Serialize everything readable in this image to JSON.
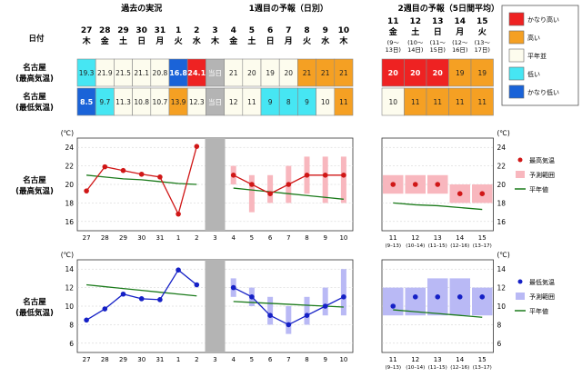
{
  "header": {
    "date_label": "日付",
    "sections": [
      "過去の実況",
      "1週目の予報（日別）",
      "2週目の予報（5日間平均）"
    ],
    "days": [
      {
        "num": "27",
        "dow": "木"
      },
      {
        "num": "28",
        "dow": "金"
      },
      {
        "num": "29",
        "dow": "土"
      },
      {
        "num": "30",
        "dow": "日"
      },
      {
        "num": "31",
        "dow": "月"
      },
      {
        "num": "1",
        "dow": "火"
      },
      {
        "num": "2",
        "dow": "水"
      },
      {
        "num": "3",
        "dow": "木"
      },
      {
        "num": "4",
        "dow": "金"
      },
      {
        "num": "5",
        "dow": "土"
      },
      {
        "num": "6",
        "dow": "日"
      },
      {
        "num": "7",
        "dow": "月"
      },
      {
        "num": "8",
        "dow": "火"
      },
      {
        "num": "9",
        "dow": "水"
      },
      {
        "num": "10",
        "dow": "木"
      }
    ],
    "week2": [
      {
        "num": "11",
        "dow": "金",
        "sub": "(9～",
        "sub2": "13日)"
      },
      {
        "num": "12",
        "dow": "土",
        "sub": "(10～",
        "sub2": "14日)"
      },
      {
        "num": "13",
        "dow": "日",
        "sub": "(11～",
        "sub2": "15日)"
      },
      {
        "num": "14",
        "dow": "月",
        "sub": "(12～",
        "sub2": "16日)"
      },
      {
        "num": "15",
        "dow": "火",
        "sub": "(13～",
        "sub2": "17日)"
      }
    ]
  },
  "table": {
    "rows": [
      {
        "label1": "名古屋",
        "label2": "(最高気温)",
        "cells": [
          "19.3",
          "21.9",
          "21.5",
          "21.1",
          "20.8",
          "16.8",
          "24.1",
          "当日",
          "21",
          "20",
          "19",
          "20",
          "21",
          "21",
          "21"
        ],
        "classes": [
          "low",
          "normal",
          "normal",
          "normal",
          "normal",
          "very-low",
          "very-high",
          "today",
          "normal",
          "normal",
          "normal",
          "normal",
          "high",
          "high",
          "high"
        ],
        "week2": [
          "20",
          "20",
          "20",
          "19",
          "19"
        ],
        "week2_classes": [
          "very-high",
          "very-high",
          "very-high",
          "high",
          "high"
        ]
      },
      {
        "label1": "名古屋",
        "label2": "(最低気温)",
        "cells": [
          "8.5",
          "9.7",
          "11.3",
          "10.8",
          "10.7",
          "13.9",
          "12.3",
          "当日",
          "12",
          "11",
          "9",
          "8",
          "9",
          "10",
          "11"
        ],
        "classes": [
          "very-low",
          "low",
          "normal",
          "normal",
          "normal",
          "high",
          "normal",
          "today",
          "normal",
          "normal",
          "low",
          "low",
          "low",
          "normal",
          "high"
        ],
        "week2": [
          "10",
          "11",
          "11",
          "11",
          "11"
        ],
        "week2_classes": [
          "normal",
          "high",
          "high",
          "high",
          "high"
        ]
      }
    ]
  },
  "legend_categories": [
    {
      "label": "かなり高い",
      "color": "#ee2222"
    },
    {
      "label": "高い",
      "color": "#f5a023"
    },
    {
      "label": "平年並",
      "color": "#fdfcee"
    },
    {
      "label": "低い",
      "color": "#46e6f3"
    },
    {
      "label": "かなり低い",
      "color": "#1a63d8"
    }
  ],
  "colors": {
    "very-high": "#ee2222",
    "high": "#f5a023",
    "normal": "#fdfcee",
    "low": "#46e6f3",
    "very-low": "#1a63d8",
    "today": "#b4b4b4",
    "red_line": "#d01717",
    "red_band": "#f8b7be",
    "blue_line": "#1520c6",
    "blue_band": "#b9b9f5",
    "normal_line": "#1a7a1a"
  },
  "chart_data": [
    {
      "type": "line",
      "row_label1": "名古屋",
      "row_label2": "(最高気温)",
      "y_unit": "(℃)",
      "ylim": [
        15,
        25
      ],
      "yticks": [
        16,
        18,
        20,
        22,
        24
      ],
      "x_past": [
        "27",
        "28",
        "29",
        "30",
        "31",
        "1",
        "2"
      ],
      "x_today": "3",
      "x_week1": [
        "4",
        "5",
        "6",
        "7",
        "8",
        "9",
        "10"
      ],
      "x_week2": [
        "11",
        "12",
        "13",
        "14",
        "15"
      ],
      "x_week2_sub": [
        "(9–13)",
        "(10–14)",
        "(11–15)",
        "(12–16)",
        "(13–17)"
      ],
      "past_values": [
        19.3,
        21.9,
        21.5,
        21.1,
        20.8,
        16.8,
        24.1
      ],
      "week1_values": [
        21,
        20,
        19,
        20,
        21,
        21,
        21
      ],
      "week1_range": [
        [
          20,
          22
        ],
        [
          17,
          21
        ],
        [
          18,
          21
        ],
        [
          18,
          22
        ],
        [
          19,
          23
        ],
        [
          18,
          23
        ],
        [
          18,
          23
        ]
      ],
      "week2_values": [
        20,
        20,
        20,
        19,
        19
      ],
      "week2_range": [
        [
          19,
          21
        ],
        [
          19,
          21
        ],
        [
          19,
          21
        ],
        [
          18,
          20
        ],
        [
          18,
          20
        ]
      ],
      "normal_past": [
        21.0,
        20.8,
        20.6,
        20.5,
        20.3,
        20.1,
        20.0
      ],
      "normal_week1": [
        19.6,
        19.4,
        19.2,
        19.0,
        18.8,
        18.6,
        18.4
      ],
      "normal_week2": [
        18.0,
        17.8,
        17.7,
        17.5,
        17.3
      ],
      "legend": [
        "最高気温",
        "予測範囲",
        "平年値"
      ]
    },
    {
      "type": "line",
      "row_label1": "名古屋",
      "row_label2": "(最低気温)",
      "y_unit": "(℃)",
      "ylim": [
        5,
        15
      ],
      "yticks": [
        6,
        8,
        10,
        12,
        14
      ],
      "x_past": [
        "27",
        "28",
        "29",
        "30",
        "31",
        "1",
        "2"
      ],
      "x_today": "3",
      "x_week1": [
        "4",
        "5",
        "6",
        "7",
        "8",
        "9",
        "10"
      ],
      "x_week2": [
        "11",
        "12",
        "13",
        "14",
        "15"
      ],
      "x_week2_sub": [
        "(9–13)",
        "(10–14)",
        "(11–15)",
        "(12–16)",
        "(13–17)"
      ],
      "past_values": [
        8.5,
        9.7,
        11.3,
        10.8,
        10.7,
        13.9,
        12.3
      ],
      "week1_values": [
        12,
        11,
        9,
        8,
        9,
        10,
        11
      ],
      "week1_range": [
        [
          11,
          13
        ],
        [
          10,
          12
        ],
        [
          8,
          11
        ],
        [
          7,
          10
        ],
        [
          8,
          11
        ],
        [
          9,
          12
        ],
        [
          9,
          14
        ]
      ],
      "week2_values": [
        10,
        11,
        11,
        11,
        11
      ],
      "week2_range": [
        [
          9,
          12
        ],
        [
          9,
          12
        ],
        [
          9,
          13
        ],
        [
          9,
          13
        ],
        [
          9,
          12
        ]
      ],
      "normal_past": [
        12.3,
        12.1,
        11.9,
        11.7,
        11.5,
        11.3,
        11.1
      ],
      "normal_week1": [
        10.5,
        10.4,
        10.3,
        10.2,
        10.1,
        10.0,
        9.9
      ],
      "normal_week2": [
        9.6,
        9.4,
        9.2,
        9.0,
        8.8
      ],
      "legend": [
        "最低気温",
        "予測範囲",
        "平年値"
      ]
    }
  ]
}
